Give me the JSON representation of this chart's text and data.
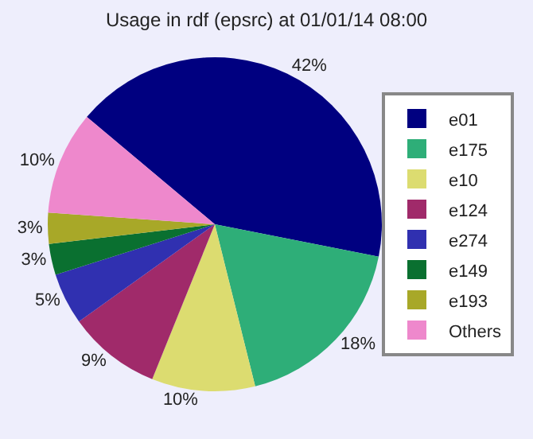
{
  "chart_data": {
    "type": "pie",
    "title": "Usage in rdf (epsrc) at 01/01/14 08:00",
    "categories": [
      "e01",
      "e175",
      "e10",
      "e124",
      "e274",
      "e149",
      "e193",
      "Others"
    ],
    "values": [
      42,
      18,
      10,
      9,
      5,
      3,
      3,
      10
    ],
    "value_labels": [
      "42%",
      "18%",
      "10%",
      "9%",
      "5%",
      "3%",
      "3%",
      "10%"
    ],
    "colors": [
      "#000080",
      "#2eae78",
      "#dcdc70",
      "#a02a6a",
      "#3030b0",
      "#0a7030",
      "#a8a828",
      "#ee88cc"
    ],
    "legend": "right"
  }
}
